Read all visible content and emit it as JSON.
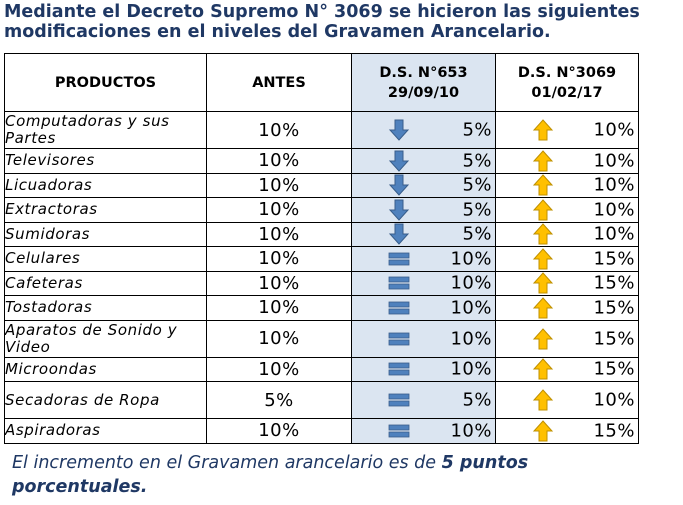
{
  "title": "Mediante el Decreto Supremo N° 3069 se hicieron las siguientes modificaciones en el  niveles del Gravamen Arancelario.",
  "headers": {
    "productos": "PRODUCTOS",
    "antes": "ANTES",
    "ds1_line1": "D.S. N°653",
    "ds1_line2": "29/09/10",
    "ds2_line1": "D.S. N°3069",
    "ds2_line2": "01/02/17"
  },
  "colors": {
    "down": "#4f81bd",
    "equal": "#4f81bd",
    "up": "#ffc000",
    "header_fill": "#dbe5f1",
    "text_blue": "#1f3864"
  },
  "rows": [
    {
      "producto": "Computadoras y sus Partes",
      "antes": "10%",
      "ds1": "5%",
      "ds1_icon": "arrow-down-icon",
      "ds2": "10%",
      "ds2_icon": "arrow-up-icon",
      "tall": true
    },
    {
      "producto": "Televisores",
      "antes": "10%",
      "ds1": "5%",
      "ds1_icon": "arrow-down-icon",
      "ds2": "10%",
      "ds2_icon": "arrow-up-icon"
    },
    {
      "producto": "Licuadoras",
      "antes": "10%",
      "ds1": "5%",
      "ds1_icon": "arrow-down-icon",
      "ds2": "10%",
      "ds2_icon": "arrow-up-icon"
    },
    {
      "producto": "Extractoras",
      "antes": "10%",
      "ds1": "5%",
      "ds1_icon": "arrow-down-icon",
      "ds2": "10%",
      "ds2_icon": "arrow-up-icon"
    },
    {
      "producto": "Sumidoras",
      "antes": "10%",
      "ds1": "5%",
      "ds1_icon": "arrow-down-icon",
      "ds2": "10%",
      "ds2_icon": "arrow-up-icon"
    },
    {
      "producto": "Celulares",
      "antes": "10%",
      "ds1": "10%",
      "ds1_icon": "equal-icon",
      "ds2": "15%",
      "ds2_icon": "arrow-up-icon"
    },
    {
      "producto": "Cafeteras",
      "antes": "10%",
      "ds1": "10%",
      "ds1_icon": "equal-icon",
      "ds2": "15%",
      "ds2_icon": "arrow-up-icon"
    },
    {
      "producto": "Tostadoras",
      "antes": "10%",
      "ds1": "10%",
      "ds1_icon": "equal-icon",
      "ds2": "15%",
      "ds2_icon": "arrow-up-icon"
    },
    {
      "producto": "Aparatos de Sonido y Video",
      "antes": "10%",
      "ds1": "10%",
      "ds1_icon": "equal-icon",
      "ds2": "15%",
      "ds2_icon": "arrow-up-icon",
      "tall": true
    },
    {
      "producto": "Microondas",
      "antes": "10%",
      "ds1": "10%",
      "ds1_icon": "equal-icon",
      "ds2": "15%",
      "ds2_icon": "arrow-up-icon"
    },
    {
      "producto": "Secadoras de Ropa",
      "antes": "5%",
      "ds1": "5%",
      "ds1_icon": "equal-icon",
      "ds2": "10%",
      "ds2_icon": "arrow-up-icon",
      "tall": true
    },
    {
      "producto": "Aspiradoras",
      "antes": "10%",
      "ds1": "10%",
      "ds1_icon": "equal-icon",
      "ds2": "15%",
      "ds2_icon": "arrow-up-icon"
    }
  ],
  "note": {
    "text": "El incremento en el Gravamen arancelario es de ",
    "bold": "5 puntos porcentuales."
  }
}
